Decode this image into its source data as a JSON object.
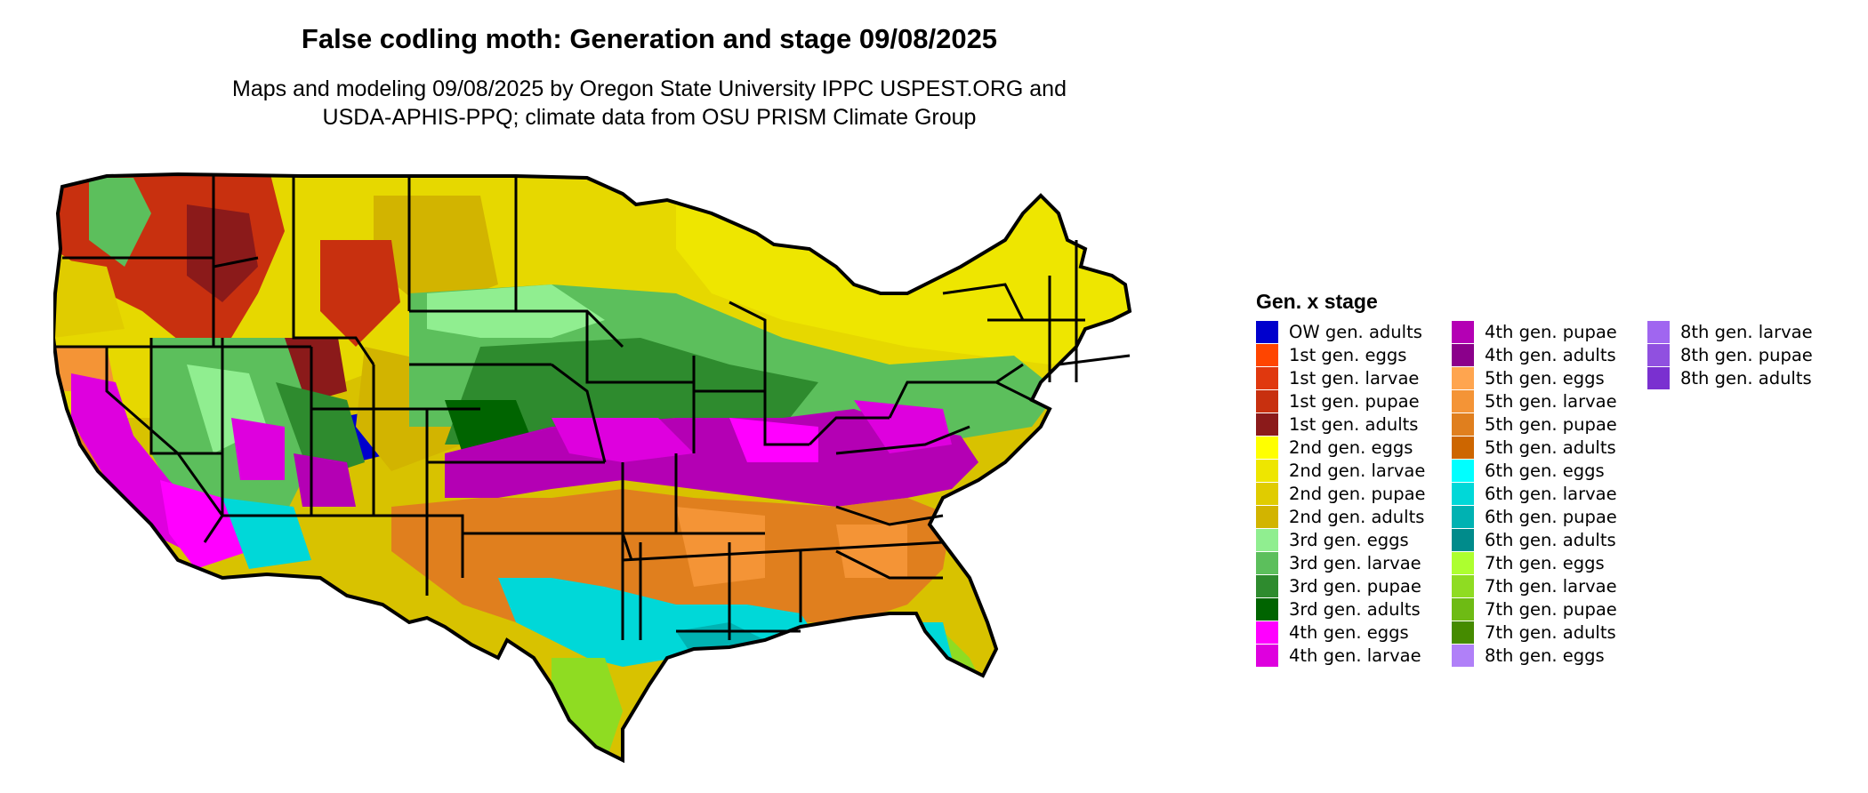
{
  "title": "False codling moth: Generation and stage 09/08/2025",
  "subtitle_lines": [
    "Maps and modeling 09/08/2025 by Oregon State University IPPC USPEST.ORG and",
    "USDA-APHIS-PPQ; climate data from OSU PRISM Climate Group"
  ],
  "legend": {
    "title": "Gen. x stage",
    "items": [
      {
        "label": "OW gen. adults",
        "color": "#0000cd"
      },
      {
        "label": "1st gen. eggs",
        "color": "#ff4500"
      },
      {
        "label": "1st gen. larvae",
        "color": "#e0380e"
      },
      {
        "label": "1st gen. pupae",
        "color": "#c8300f"
      },
      {
        "label": "1st gen. adults",
        "color": "#8b1a1a"
      },
      {
        "label": "2nd gen. eggs",
        "color": "#ffff00"
      },
      {
        "label": "2nd gen. larvae",
        "color": "#eee600"
      },
      {
        "label": "2nd gen. pupae",
        "color": "#e0cc00"
      },
      {
        "label": "2nd gen. adults",
        "color": "#d2b400"
      },
      {
        "label": "3rd gen. eggs",
        "color": "#90ee90"
      },
      {
        "label": "3rd gen. larvae",
        "color": "#5cbf5c"
      },
      {
        "label": "3rd gen. pupae",
        "color": "#2e8b2e"
      },
      {
        "label": "3rd gen. adults",
        "color": "#006400"
      },
      {
        "label": "4th gen. eggs",
        "color": "#ff00ff"
      },
      {
        "label": "4th gen. larvae",
        "color": "#de00de"
      },
      {
        "label": "4th gen. pupae",
        "color": "#b400b4"
      },
      {
        "label": "4th gen. adults",
        "color": "#8b008b"
      },
      {
        "label": "5th gen. eggs",
        "color": "#ffa54f"
      },
      {
        "label": "5th gen. larvae",
        "color": "#f49436"
      },
      {
        "label": "5th gen. pupae",
        "color": "#e07f1e"
      },
      {
        "label": "5th gen. adults",
        "color": "#cd6600"
      },
      {
        "label": "6th gen. eggs",
        "color": "#00ffff"
      },
      {
        "label": "6th gen. larvae",
        "color": "#00d8d8"
      },
      {
        "label": "6th gen. pupae",
        "color": "#00b2b2"
      },
      {
        "label": "6th gen. adults",
        "color": "#008b8b"
      },
      {
        "label": "7th gen. eggs",
        "color": "#adff2f"
      },
      {
        "label": "7th gen. larvae",
        "color": "#8fdc22"
      },
      {
        "label": "7th gen. pupae",
        "color": "#6ebb14"
      },
      {
        "label": "7th gen. adults",
        "color": "#458b00"
      },
      {
        "label": "8th gen. eggs",
        "color": "#b080f8"
      },
      {
        "label": "8th gen. larvae",
        "color": "#a066f0"
      },
      {
        "label": "8th gen. pupae",
        "color": "#9050e0"
      },
      {
        "label": "8th gen. adults",
        "color": "#7a30d0"
      }
    ]
  }
}
